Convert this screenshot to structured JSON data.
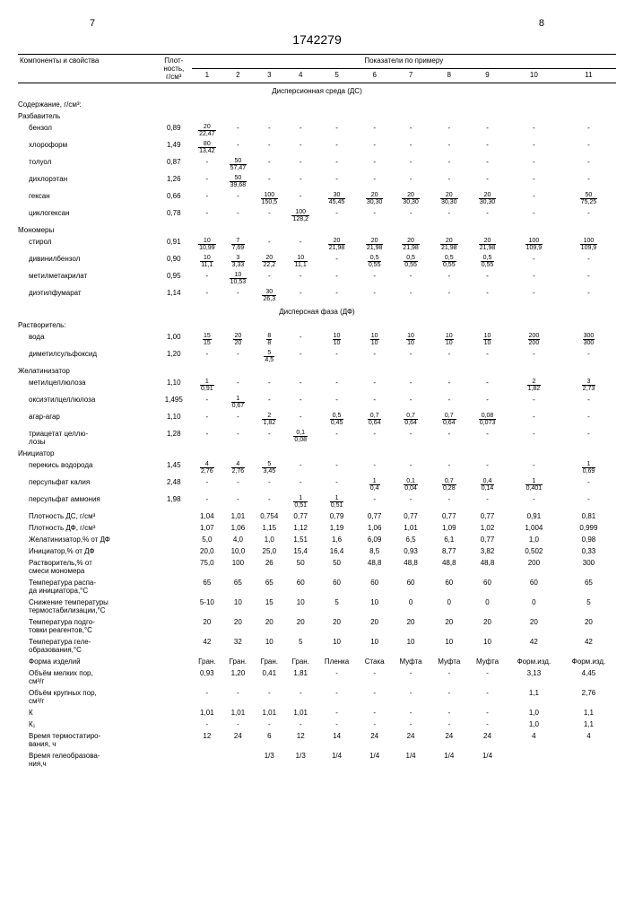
{
  "pageLeft": "7",
  "pageRight": "8",
  "docId": "1742279",
  "headers": {
    "col0": "Компоненты и свойства",
    "col1": "Плот-\nность,\nг/см³",
    "colGroup": "Показатели по примеру",
    "cols": [
      "1",
      "2",
      "3",
      "4",
      "5",
      "6",
      "7",
      "8",
      "9",
      "10",
      "11"
    ]
  },
  "sectionDS": "Дисперсионная среда (ДС)",
  "sectionDF": "Дисперсная фаза (ДФ)",
  "rows": [
    {
      "type": "sub",
      "label": "Содержание, г/см³:"
    },
    {
      "type": "sub",
      "label": "Разбавитель"
    },
    {
      "label": "бензол",
      "den": "0,89",
      "v": [
        {
          "t": "20",
          "b": "22,47"
        },
        "-",
        "-",
        "-",
        "-",
        "-",
        "-",
        "-",
        "-",
        "-",
        "-"
      ]
    },
    {
      "label": "хлороформ",
      "den": "1,49",
      "v": [
        {
          "t": "80",
          "b": "13,42"
        },
        "-",
        "-",
        "-",
        "-",
        "-",
        "-",
        "-",
        "-",
        "-",
        "-"
      ]
    },
    {
      "label": "толуол",
      "den": "0,87",
      "v": [
        "-",
        {
          "t": "50",
          "b": "57,47"
        },
        "-",
        "-",
        "-",
        "-",
        "-",
        "-",
        "-",
        "-",
        "-"
      ]
    },
    {
      "label": "дихлорэтан",
      "den": "1,26",
      "v": [
        "-",
        {
          "t": "50",
          "b": "39,68"
        },
        "-",
        "-",
        "-",
        "-",
        "-",
        "-",
        "-",
        "-",
        "-"
      ]
    },
    {
      "label": "гексан",
      "den": "0,66",
      "v": [
        "-",
        "-",
        {
          "t": "100",
          "b": "150,5"
        },
        "-",
        {
          "t": "30",
          "b": "45,45"
        },
        {
          "t": "20",
          "b": "30,30"
        },
        {
          "t": "20",
          "b": "30,30"
        },
        {
          "t": "20",
          "b": "30,30"
        },
        {
          "t": "20",
          "b": "30,30"
        },
        "-",
        {
          "t": "50",
          "b": "75,25"
        }
      ]
    },
    {
      "label": "циклогексан",
      "den": "0,78",
      "v": [
        "-",
        "-",
        "-",
        {
          "t": "100",
          "b": "128,2"
        },
        "-",
        "-",
        "-",
        "-",
        "-",
        "-",
        "-"
      ]
    },
    {
      "type": "sub",
      "label": "Мономеры"
    },
    {
      "label": "стирол",
      "den": "0,91",
      "v": [
        {
          "t": "10",
          "b": "10,99"
        },
        {
          "t": "7",
          "b": "7,69"
        },
        "-",
        "-",
        {
          "t": "20",
          "b": "21,98"
        },
        {
          "t": "20",
          "b": "21,98"
        },
        {
          "t": "20",
          "b": "21,98"
        },
        {
          "t": "20",
          "b": "21,98"
        },
        {
          "t": "20",
          "b": "21,98"
        },
        {
          "t": "100",
          "b": "109,9"
        },
        {
          "t": "100",
          "b": "109,9"
        }
      ]
    },
    {
      "label": "дивинилбензол",
      "den": "0,90",
      "v": [
        {
          "t": "10",
          "b": "11,1"
        },
        {
          "t": "3",
          "b": "3,33"
        },
        {
          "t": "20",
          "b": "22,2"
        },
        {
          "t": "10",
          "b": "11,1"
        },
        "-",
        {
          "t": "0,5",
          "b": "0,55"
        },
        {
          "t": "0,5",
          "b": "0,55"
        },
        {
          "t": "0,5",
          "b": "0,55"
        },
        {
          "t": "0,5",
          "b": "0,55"
        },
        "-",
        "-"
      ]
    },
    {
      "label": "метилметакрилат",
      "den": "0,95",
      "v": [
        "-",
        {
          "t": "10",
          "b": "10,53"
        },
        "-",
        "-",
        "-",
        "-",
        "-",
        "-",
        "-",
        "-",
        "-"
      ]
    },
    {
      "label": "диэтилфумарат",
      "den": "1,14",
      "v": [
        "-",
        "-",
        {
          "t": "30",
          "b": "26,3"
        },
        "-",
        "-",
        "-",
        "-",
        "-",
        "-",
        "-",
        "-"
      ]
    },
    {
      "type": "title",
      "label": "Дисперсная фаза (ДФ)"
    },
    {
      "type": "sub",
      "label": "Растворитель:"
    },
    {
      "label": "вода",
      "den": "1,00",
      "v": [
        {
          "t": "15",
          "b": "15"
        },
        {
          "t": "20",
          "b": "20"
        },
        {
          "t": "8",
          "b": "8"
        },
        "-",
        {
          "t": "10",
          "b": "10"
        },
        {
          "t": "10",
          "b": "10"
        },
        {
          "t": "10",
          "b": "10"
        },
        {
          "t": "10",
          "b": "10"
        },
        {
          "t": "10",
          "b": "10"
        },
        {
          "t": "200",
          "b": "200"
        },
        {
          "t": "300",
          "b": "300"
        }
      ]
    },
    {
      "label": "диметилсульфоксид",
      "den": "1,20",
      "v": [
        "-",
        "-",
        {
          "t": "5",
          "b": "4,5"
        },
        "-",
        "-",
        "-",
        "-",
        "-",
        "-",
        "-",
        "-"
      ]
    },
    {
      "type": "sub",
      "label": "Желатинизатор"
    },
    {
      "label": "метилцеллюлоза",
      "den": "1,10",
      "v": [
        {
          "t": "1",
          "b": "0,91"
        },
        "-",
        "-",
        "-",
        "-",
        "-",
        "-",
        "-",
        "-",
        {
          "t": "2",
          "b": "1,82"
        },
        {
          "t": "3",
          "b": "2,73"
        }
      ]
    },
    {
      "label": "оксиэтилцеллюлоза",
      "den": "1,495",
      "v": [
        "-",
        {
          "t": "1",
          "b": "0,67"
        },
        "-",
        "-",
        "-",
        "-",
        "-",
        "-",
        "-",
        "-",
        "-"
      ]
    },
    {
      "label": "агар-агар",
      "den": "1,10",
      "v": [
        "-",
        "-",
        {
          "t": "2",
          "b": "1,82"
        },
        "-",
        {
          "t": "0,5",
          "b": "0,45"
        },
        {
          "t": "0,7",
          "b": "0,64"
        },
        {
          "t": "0,7",
          "b": "0,64"
        },
        {
          "t": "0,7",
          "b": "0,64"
        },
        {
          "t": "0,08",
          "b": "0,073"
        },
        "-",
        "-"
      ]
    },
    {
      "label": "триацетат целлю-\nлозы",
      "den": "1,28",
      "v": [
        "-",
        "-",
        "-",
        {
          "t": "0,1",
          "b": "0,08"
        },
        "-",
        "-",
        "-",
        "-",
        "-",
        "-",
        "-"
      ]
    },
    {
      "type": "sub",
      "label": "Инициатор"
    },
    {
      "label": "перекись водорода",
      "den": "1,45",
      "v": [
        {
          "t": "4",
          "b": "2,76"
        },
        {
          "t": "4",
          "b": "2,76"
        },
        {
          "t": "5",
          "b": "3,45"
        },
        "-",
        "-",
        "-",
        "-",
        "-",
        "-",
        "-",
        {
          "t": "1",
          "b": "0,69"
        }
      ]
    },
    {
      "label": "персульфат калия",
      "den": "2,48",
      "v": [
        "-",
        "-",
        "-",
        "-",
        "-",
        {
          "t": "1",
          "b": "0,4"
        },
        {
          "t": "0,1",
          "b": "0,04"
        },
        {
          "t": "0,7",
          "b": "0,28"
        },
        {
          "t": "0,4",
          "b": "0,14"
        },
        {
          "t": "1",
          "b": "0,401"
        },
        "-"
      ]
    },
    {
      "label": "персульфат аммония",
      "den": "1,98",
      "v": [
        "-",
        "-",
        "-",
        {
          "t": "1",
          "b": "0,51"
        },
        {
          "t": "1",
          "b": "0,51"
        },
        "-",
        "-",
        "-",
        "-",
        "-",
        "-"
      ]
    },
    {
      "type": "plain",
      "label": "Плотность ДС, г/см³",
      "den": "",
      "v": [
        "1,04",
        "1,01",
        "0,754",
        "0,77",
        "0,79",
        "0,77",
        "0,77",
        "0,77",
        "0,77",
        "0,91",
        "0,81"
      ]
    },
    {
      "type": "plain",
      "label": "Плотность ДФ, г/см³",
      "den": "",
      "v": [
        "1,07",
        "1,06",
        "1,15",
        "1,12",
        "1,19",
        "1,06",
        "1,01",
        "1,09",
        "1,02",
        "1,004",
        "0,999"
      ]
    },
    {
      "type": "plain",
      "label": "Желатинизатор,% от ДФ",
      "den": "",
      "v": [
        "5,0",
        "4,0",
        "1,0",
        "1,51",
        "1,6",
        "6,09",
        "6,5",
        "6,1",
        "0,77",
        "1,0",
        "0,98"
      ]
    },
    {
      "type": "plain",
      "label": "Инициатор,% от ДФ",
      "den": "",
      "v": [
        "20,0",
        "10,0",
        "25,0",
        "15,4",
        "16,4",
        "8,5",
        "0,93",
        "8,77",
        "3,82",
        "0,502",
        "0,33"
      ]
    },
    {
      "type": "plain",
      "label": "Растворитель,% от\nсмеси мономера",
      "den": "",
      "v": [
        "75,0",
        "100",
        "26",
        "50",
        "50",
        "48,8",
        "48,8",
        "48,8",
        "48,8",
        "200",
        "300"
      ]
    },
    {
      "type": "plain",
      "label": "Температура распа-\nда инициатора,°С",
      "den": "",
      "v": [
        "65",
        "65",
        "65",
        "60",
        "60",
        "60",
        "60",
        "60",
        "60",
        "60",
        "65"
      ]
    },
    {
      "type": "plain",
      "label": "Снижение температуры\nтермостабилизации,°С",
      "den": "",
      "v": [
        "5-10",
        "10",
        "15",
        "10",
        "5",
        "10",
        "0",
        "0",
        "0",
        "0",
        "5"
      ]
    },
    {
      "type": "plain",
      "label": "Температура подго-\nтовки реагентов,°С",
      "den": "",
      "v": [
        "20",
        "20",
        "20",
        "20",
        "20",
        "20",
        "20",
        "20",
        "20",
        "20",
        "20"
      ]
    },
    {
      "type": "plain",
      "label": "Температура геле-\nобразования,°С",
      "den": "",
      "v": [
        "42",
        "32",
        "10",
        "5",
        "10",
        "10",
        "10",
        "10",
        "10",
        "42",
        "42"
      ]
    },
    {
      "type": "plain",
      "label": "Форма изделий",
      "den": "",
      "v": [
        "Гран.",
        "Гран.",
        "Гран.",
        "Гран.",
        "Пленка",
        "Стака",
        "Муфта",
        "Муфта",
        "Муфта",
        "Форм.изд.",
        "Форм.изд."
      ]
    },
    {
      "type": "plain",
      "label": "Объём мелких пор,\nсм³/г",
      "den": "",
      "v": [
        "0,93",
        "1,20",
        "0,41",
        "1,81",
        "-",
        "-",
        "-",
        "-",
        "-",
        "3,13",
        "4,45"
      ]
    },
    {
      "type": "plain",
      "label": "Объём крупных пор,\nсм³/г",
      "den": "",
      "v": [
        "-",
        "-",
        "-",
        "-",
        "-",
        "-",
        "-",
        "-",
        "-",
        "1,1",
        "2,76"
      ]
    },
    {
      "type": "plain",
      "label": "К",
      "den": "",
      "v": [
        "1,01",
        "1,01",
        "1,01",
        "1,01",
        "-",
        "-",
        "-",
        "-",
        "-",
        "1,0",
        "1,1"
      ]
    },
    {
      "type": "plain",
      "label": "К₁",
      "den": "",
      "v": [
        "-",
        "-",
        "-",
        "-",
        "-",
        "-",
        "-",
        "-",
        "-",
        "1,0",
        "1,1"
      ]
    },
    {
      "type": "plain",
      "label": "Время термостатиро-\nвания, ч",
      "den": "",
      "v": [
        "12",
        "24",
        "6",
        "12",
        "14",
        "24",
        "24",
        "24",
        "24",
        "4",
        "4"
      ]
    },
    {
      "type": "plain",
      "label": "Время гелеобразова-\nния,ч",
      "den": "",
      "v": [
        "",
        "",
        "1/3",
        "1/3",
        "1/4",
        "1/4",
        "1/4",
        "1/4",
        "1/4",
        "",
        ""
      ]
    }
  ]
}
